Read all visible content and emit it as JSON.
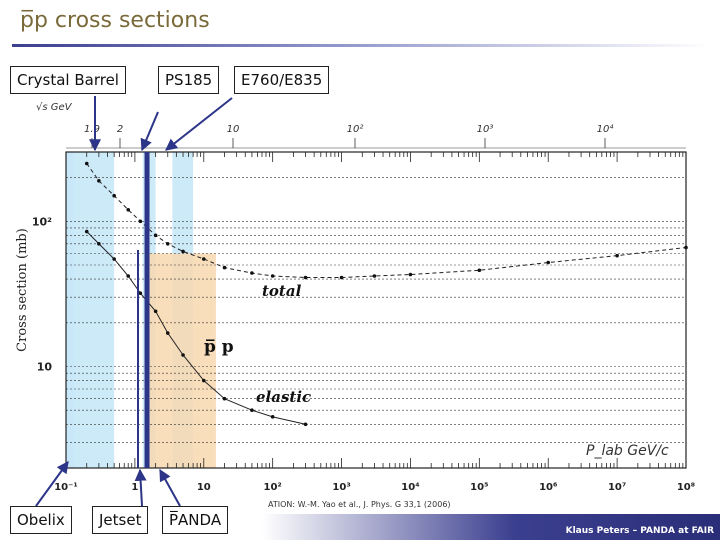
{
  "slide": {
    "title": "p̅p cross sections",
    "citation": "ATION: W.-M. Yao et al., J. Phys. G 33,1 (2006)",
    "footer": "Klaus Peters – PANDA at FAIR"
  },
  "labels": {
    "crystal_barrel": "Crystal Barrel",
    "ps185": "PS185",
    "e760": "E760/E835",
    "obelix": "Obelix",
    "jetset": "Jetset",
    "panda": "P̅ANDA"
  },
  "colors": {
    "experiment_band": "#c8e8f8",
    "panda_band": "#f8d8b0",
    "marker_line": "#2c3588",
    "arrow": "#2c3588"
  },
  "chart_data": {
    "type": "scatter",
    "x_scale": "log",
    "y_scale": "log",
    "ylabel": "Cross section (mb)",
    "top_axis_label": "√s GeV",
    "top_ticks": [
      "1.9",
      "2",
      "10",
      "10²",
      "10³",
      "10⁴"
    ],
    "bottom_ticks": [
      "10⁻¹",
      "1",
      "10",
      "10²",
      "10³",
      "10⁴",
      "10⁵",
      "10⁶",
      "10⁷",
      "10⁸"
    ],
    "y_ticks": [
      "10²",
      "10"
    ],
    "xlim": [
      0.1,
      100000000
    ],
    "ylim": [
      2,
      300
    ],
    "bottom_axis_label": "P_lab GeV/c",
    "annotations": [
      "total",
      "p̅ p",
      "elastic"
    ],
    "series": [
      {
        "name": "total",
        "x": [
          0.2,
          0.3,
          0.5,
          0.8,
          1.2,
          2,
          3,
          5,
          10,
          20,
          50,
          100,
          300,
          1000,
          3000,
          10000,
          100000,
          1000000,
          10000000,
          100000000
        ],
        "y": [
          250,
          190,
          150,
          120,
          100,
          80,
          70,
          62,
          55,
          48,
          44,
          42,
          41,
          41,
          42,
          43,
          46,
          52,
          58,
          66
        ]
      },
      {
        "name": "elastic",
        "x": [
          0.2,
          0.3,
          0.5,
          0.8,
          1.2,
          2,
          3,
          5,
          10,
          20,
          50,
          100,
          300
        ],
        "y": [
          85,
          70,
          55,
          42,
          32,
          24,
          17,
          12,
          8,
          6,
          5,
          4.5,
          4
        ]
      }
    ],
    "bands": [
      {
        "experiment": "Crystal Barrel",
        "x": [
          0.1,
          0.5
        ]
      },
      {
        "experiment": "Obelix",
        "x": [
          0.1,
          0.13
        ]
      },
      {
        "experiment": "PS185",
        "x": [
          1.3,
          2.0
        ]
      },
      {
        "experiment": "E760/E835",
        "x": [
          3.5,
          7
        ]
      },
      {
        "experiment": "PANDA",
        "x": [
          1.5,
          15
        ]
      }
    ],
    "markers": [
      {
        "experiment": "Jetset",
        "x": 1.5
      }
    ]
  }
}
